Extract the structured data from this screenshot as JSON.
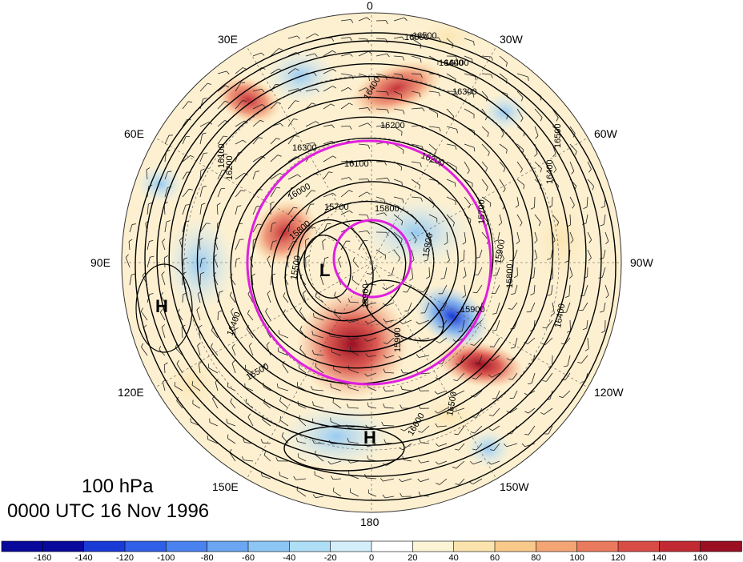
{
  "title": {
    "level": "100 hPa",
    "time": "0000 UTC 16 Nov 1996"
  },
  "longitude_labels": [
    "0",
    "30W",
    "60W",
    "90W",
    "120W",
    "150W",
    "180",
    "150E",
    "120E",
    "90E",
    "60E",
    "30E"
  ],
  "pressure_centers": [
    "H",
    "L",
    "H"
  ],
  "contour_labels": [
    "16500",
    "16400",
    "16300",
    "16200",
    "16100",
    "16000",
    "15900",
    "15800",
    "15700",
    "15600",
    "15500",
    "16600"
  ],
  "colorbar": {
    "ticks": [
      "-160",
      "-140",
      "-120",
      "-100",
      "-80",
      "-60",
      "-40",
      "-20",
      "0",
      "20",
      "40",
      "60",
      "80",
      "100",
      "120",
      "140",
      "160"
    ],
    "colors": [
      "#08089c",
      "#1a3ad6",
      "#2f5ee8",
      "#4a82ef",
      "#6aa6f2",
      "#8cc6f5",
      "#afdef7",
      "#d3eefa",
      "#ffffff",
      "#fdf4d6",
      "#fbe3ad",
      "#f9c98a",
      "#f4a574",
      "#ea7a5d",
      "#d94c46",
      "#c12a32",
      "#9a0f22"
    ]
  },
  "styling": {
    "ring_color": "#e020e0",
    "contour_color": "#000000"
  }
}
